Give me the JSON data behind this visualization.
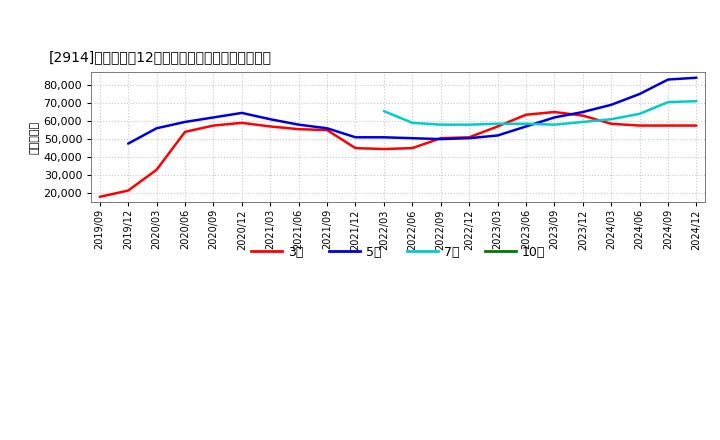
{
  "title": "[2914]　経常利益12か月移動合計の標準偏差の推移",
  "ylabel": "（百万円）",
  "legend_3": "3年",
  "legend_5": "5年",
  "legend_7": "7年",
  "legend_10": "10年",
  "ylim": [
    15000,
    87000
  ],
  "yticks": [
    20000,
    30000,
    40000,
    50000,
    60000,
    70000,
    80000
  ],
  "background_color": "#ffffff",
  "grid_color": "#c8c8c8",
  "series": {
    "3年": {
      "color": "#ff0000",
      "points": [
        [
          "2019/09",
          18000
        ],
        [
          "2019/12",
          21500
        ],
        [
          "2020/03",
          33000
        ],
        [
          "2020/06",
          54000
        ],
        [
          "2020/09",
          57500
        ],
        [
          "2020/12",
          59000
        ],
        [
          "2021/03",
          57000
        ],
        [
          "2021/06",
          55500
        ],
        [
          "2021/09",
          55000
        ],
        [
          "2021/12",
          45000
        ],
        [
          "2022/03",
          44500
        ],
        [
          "2022/06",
          45000
        ],
        [
          "2022/09",
          50500
        ],
        [
          "2022/12",
          51000
        ],
        [
          "2023/03",
          57000
        ],
        [
          "2023/06",
          63500
        ],
        [
          "2023/09",
          65000
        ],
        [
          "2023/12",
          63000
        ],
        [
          "2024/03",
          58500
        ],
        [
          "2024/06",
          57500
        ],
        [
          "2024/09",
          57500
        ],
        [
          "2024/12",
          57500
        ]
      ]
    },
    "5年": {
      "color": "#0000dd",
      "points": [
        [
          "2019/12",
          47500
        ],
        [
          "2020/03",
          56000
        ],
        [
          "2020/06",
          59500
        ],
        [
          "2020/09",
          62000
        ],
        [
          "2020/12",
          64500
        ],
        [
          "2021/03",
          61000
        ],
        [
          "2021/06",
          58000
        ],
        [
          "2021/09",
          56000
        ],
        [
          "2021/12",
          51000
        ],
        [
          "2022/03",
          51000
        ],
        [
          "2022/06",
          50500
        ],
        [
          "2022/09",
          50000
        ],
        [
          "2022/12",
          50500
        ],
        [
          "2023/03",
          52000
        ],
        [
          "2023/06",
          57000
        ],
        [
          "2023/09",
          62000
        ],
        [
          "2023/12",
          65000
        ],
        [
          "2024/03",
          69000
        ],
        [
          "2024/06",
          75000
        ],
        [
          "2024/09",
          83000
        ],
        [
          "2024/12",
          84000
        ]
      ]
    },
    "7年": {
      "color": "#00cccc",
      "points": [
        [
          "2022/03",
          65500
        ],
        [
          "2022/06",
          59000
        ],
        [
          "2022/09",
          58000
        ],
        [
          "2022/12",
          58000
        ],
        [
          "2023/03",
          58500
        ],
        [
          "2023/06",
          58500
        ],
        [
          "2023/09",
          58000
        ],
        [
          "2023/12",
          59500
        ],
        [
          "2024/03",
          61000
        ],
        [
          "2024/06",
          64000
        ],
        [
          "2024/09",
          70500
        ],
        [
          "2024/12",
          71000
        ]
      ]
    },
    "10年": {
      "color": "#007700",
      "points": []
    }
  },
  "xtick_labels": [
    "2019/09",
    "2019/12",
    "2020/03",
    "2020/06",
    "2020/09",
    "2020/12",
    "2021/03",
    "2021/06",
    "2021/09",
    "2021/12",
    "2022/03",
    "2022/06",
    "2022/09",
    "2022/12",
    "2023/03",
    "2023/06",
    "2023/09",
    "2023/12",
    "2024/03",
    "2024/06",
    "2024/09",
    "2024/12"
  ]
}
